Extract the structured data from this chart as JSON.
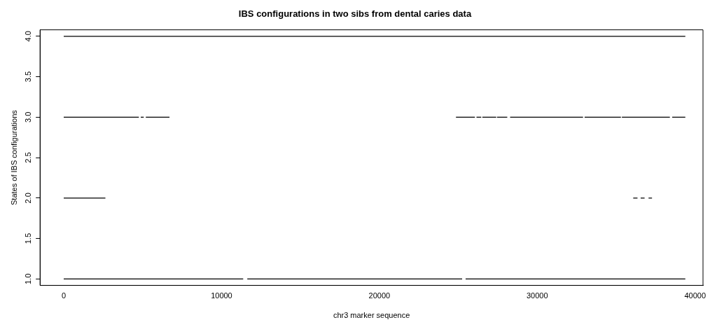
{
  "chart_data": {
    "type": "line",
    "title": "IBS configurations in two sibs from dental caries data",
    "xlabel": "chr3 marker sequence",
    "ylabel": "States of IBS configurations",
    "xlim": [
      -1500,
      40500
    ],
    "xticks": [
      0,
      10000,
      20000,
      30000,
      40000
    ],
    "ylim": [
      0.92,
      4.08
    ],
    "yticks": [
      {
        "value": 1,
        "label": "1.0"
      },
      {
        "value": 1.5,
        "label": "1.5"
      },
      {
        "value": 2,
        "label": "2.0"
      },
      {
        "value": 2.5,
        "label": "2.5"
      },
      {
        "value": 3,
        "label": "3.0"
      },
      {
        "value": 3.5,
        "label": "3.5"
      },
      {
        "value": 4,
        "label": "4.0"
      }
    ],
    "grid": false,
    "legend": false,
    "marker": "none",
    "line_style": "solid",
    "series": [
      {
        "color": "#000000",
        "x": [
          0,
          39380
        ],
        "values": [
          4,
          4
        ]
      },
      {
        "color": "#000000",
        "x": [
          0,
          4760,
          4820,
          4880,
          5070,
          5130,
          5200,
          6700,
          15000,
          24850,
          26050,
          26100,
          26150,
          26450,
          26480,
          26520,
          27400,
          27420,
          27450,
          28100,
          28200,
          28280,
          32900,
          32950,
          33000,
          35300,
          35330,
          35360,
          38400,
          38480,
          38550,
          39380
        ],
        "values": [
          3,
          3,
          null,
          3,
          3,
          null,
          3,
          3,
          null,
          3,
          3,
          null,
          3,
          3,
          null,
          3,
          3,
          null,
          3,
          3,
          null,
          3,
          3,
          null,
          3,
          3,
          null,
          3,
          3,
          null,
          3,
          3
        ]
      },
      {
        "color": "#000000",
        "x": [
          0,
          2640,
          19000,
          36080,
          36350,
          36450,
          36550,
          36800,
          36950,
          37050,
          37270
        ],
        "values": [
          2,
          2,
          null,
          2,
          2,
          null,
          2,
          2,
          null,
          2,
          2
        ]
      },
      {
        "color": "#000000",
        "x": [
          0,
          11370,
          11500,
          11630,
          25240,
          25350,
          25460,
          39380
        ],
        "values": [
          1,
          1,
          null,
          1,
          1,
          null,
          1,
          1
        ]
      }
    ]
  }
}
